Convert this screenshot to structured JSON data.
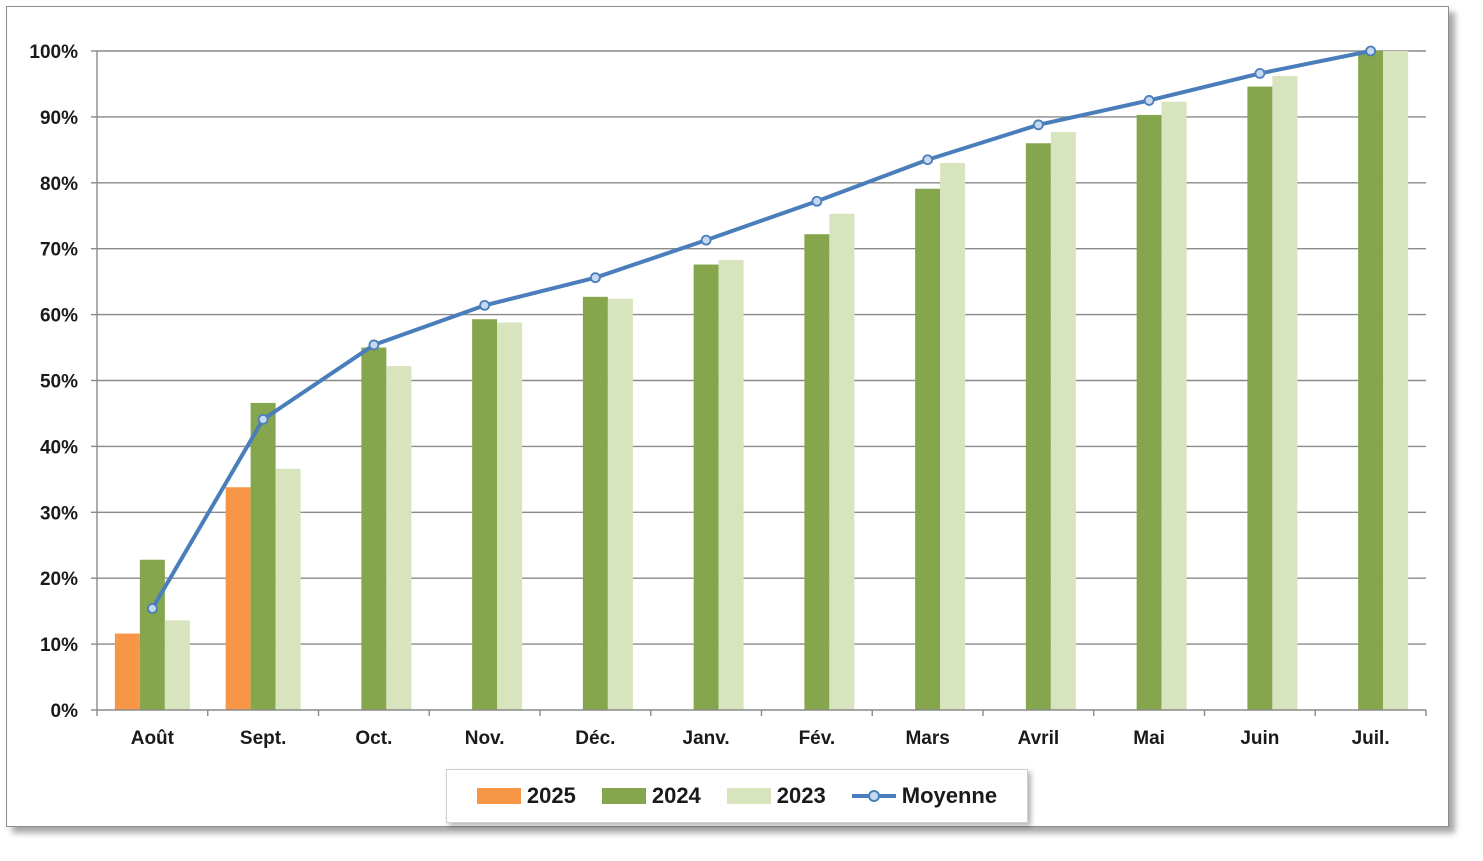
{
  "chart_data": {
    "type": "bar",
    "categories": [
      "Août",
      "Sept.",
      "Oct.",
      "Nov.",
      "Déc.",
      "Janv.",
      "Fév.",
      "Mars",
      "Avril",
      "Mai",
      "Juin",
      "Juil."
    ],
    "series": [
      {
        "name": "2025",
        "kind": "bar",
        "color": "#f79646",
        "values": [
          11.6,
          33.8,
          null,
          null,
          null,
          null,
          null,
          null,
          null,
          null,
          null,
          null
        ]
      },
      {
        "name": "2024",
        "kind": "bar",
        "color": "#86a64e",
        "values": [
          22.8,
          46.6,
          55.0,
          59.3,
          62.7,
          67.6,
          72.2,
          79.1,
          86.0,
          90.3,
          94.6,
          100.0
        ]
      },
      {
        "name": "2023",
        "kind": "bar",
        "color": "#d7e4bd",
        "values": [
          13.6,
          36.6,
          52.2,
          58.8,
          62.4,
          68.3,
          75.3,
          83.0,
          87.7,
          92.3,
          96.2,
          100.0
        ]
      },
      {
        "name": "Moyenne",
        "kind": "line",
        "color": "#4a7ebb",
        "marker_fill": "#c5d9f1",
        "values": [
          15.4,
          44.1,
          55.4,
          61.4,
          65.6,
          71.3,
          77.2,
          83.5,
          88.8,
          92.5,
          96.6,
          100.0
        ]
      }
    ],
    "y_ticks": [
      "0%",
      "10%",
      "20%",
      "30%",
      "40%",
      "50%",
      "60%",
      "70%",
      "80%",
      "90%",
      "100%"
    ],
    "ylim": [
      0,
      100
    ],
    "grid": true,
    "legend_position": "bottom"
  }
}
